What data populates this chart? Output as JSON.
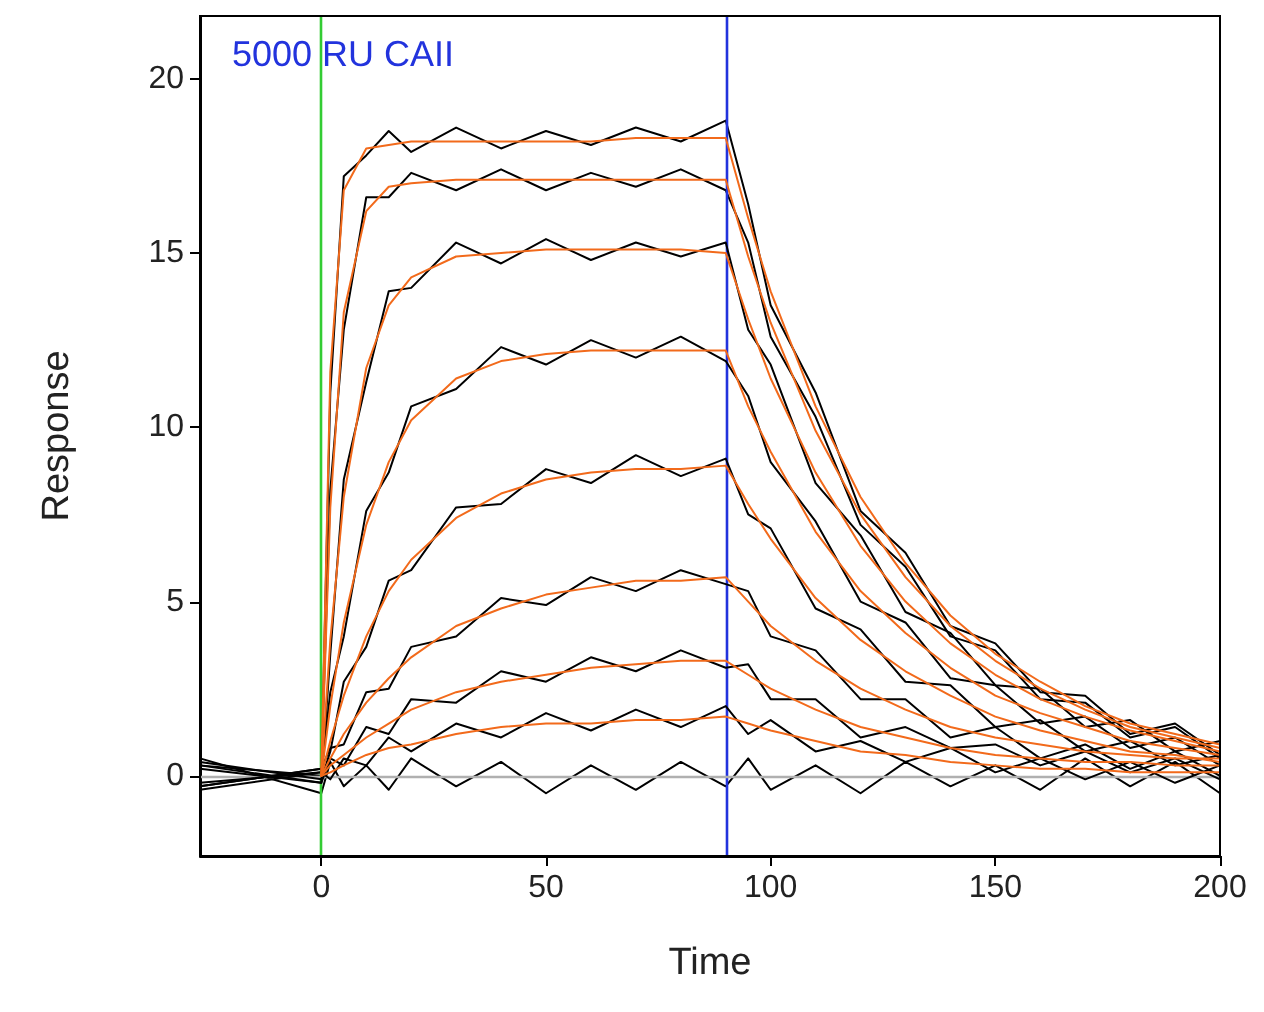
{
  "chart_data": {
    "type": "line",
    "xlabel": "Time",
    "ylabel": "Response",
    "annotations": [
      "5000 RU CAII"
    ],
    "xlim": [
      -27,
      200
    ],
    "xticks": [
      0,
      50,
      100,
      150,
      200
    ],
    "ylim": [
      -2.3,
      21.8
    ],
    "yticks": [
      0,
      5,
      10,
      15,
      20
    ],
    "grid": false,
    "marker": "none",
    "line_style": "solid",
    "ref_lines": [
      {
        "axis": "x",
        "value": 0,
        "color": "#33cc33"
      },
      {
        "axis": "x",
        "value": 90,
        "color": "#2233dd"
      },
      {
        "axis": "y",
        "value": 0,
        "color": "#b0b0b0"
      }
    ],
    "series": [
      {
        "color": "#000000",
        "x": [
          -27,
          0,
          2,
          5,
          10,
          15,
          20,
          30,
          40,
          50,
          60,
          70,
          80,
          90,
          95,
          100,
          110,
          120,
          130,
          140,
          150,
          160,
          170,
          180,
          190,
          200
        ],
        "values": [
          0.5,
          -0.5,
          0.4,
          -0.3,
          0.3,
          -0.4,
          0.5,
          -0.3,
          0.4,
          -0.5,
          0.3,
          -0.4,
          0.4,
          -0.3,
          0.5,
          -0.4,
          0.3,
          -0.5,
          0.4,
          -0.3,
          0.3,
          -0.4,
          0.5,
          -0.3,
          0.4,
          -0.5
        ]
      },
      {
        "color": "#000000",
        "x": [
          -27,
          0,
          2,
          5,
          10,
          15,
          20,
          30,
          40,
          50,
          60,
          70,
          80,
          90,
          95,
          100,
          110,
          120,
          130,
          140,
          150,
          160,
          170,
          180,
          190,
          200
        ],
        "values": [
          0.3,
          0,
          11.0,
          17.2,
          17.8,
          18.5,
          17.9,
          18.6,
          18.0,
          18.5,
          18.1,
          18.6,
          18.2,
          18.8,
          16.4,
          13.5,
          11.0,
          7.6,
          6.4,
          4.3,
          3.8,
          2.4,
          2.3,
          1.2,
          1.5,
          0.6
        ]
      },
      {
        "color": "#000000",
        "x": [
          -27,
          0,
          2,
          5,
          10,
          15,
          20,
          30,
          40,
          50,
          60,
          70,
          80,
          90,
          95,
          100,
          110,
          120,
          130,
          140,
          150,
          160,
          170,
          180,
          190,
          200
        ],
        "values": [
          -0.3,
          0.2,
          8.2,
          12.8,
          16.6,
          16.6,
          17.3,
          16.8,
          17.4,
          16.8,
          17.3,
          16.9,
          17.4,
          16.8,
          15.3,
          12.6,
          10.3,
          7.2,
          6.0,
          4.0,
          3.6,
          2.2,
          2.1,
          1.1,
          1.4,
          0.5
        ]
      },
      {
        "color": "#000000",
        "x": [
          -27,
          0,
          2,
          5,
          10,
          15,
          20,
          30,
          40,
          50,
          60,
          70,
          80,
          90,
          95,
          100,
          110,
          120,
          130,
          140,
          150,
          160,
          170,
          180,
          190,
          200
        ],
        "values": [
          0.2,
          -0.2,
          3.5,
          8.5,
          11.3,
          13.9,
          14.0,
          15.3,
          14.7,
          15.4,
          14.8,
          15.3,
          14.9,
          15.3,
          12.8,
          11.8,
          8.4,
          6.9,
          4.7,
          4.1,
          2.6,
          2.5,
          1.4,
          1.6,
          0.7,
          1.0
        ]
      },
      {
        "color": "#000000",
        "x": [
          -27,
          0,
          2,
          5,
          10,
          15,
          20,
          30,
          40,
          50,
          60,
          70,
          80,
          90,
          95,
          100,
          110,
          120,
          130,
          140,
          150,
          160,
          170,
          180,
          190,
          200
        ],
        "values": [
          -0.2,
          0.1,
          2.4,
          4.0,
          7.6,
          8.7,
          10.6,
          11.1,
          12.3,
          11.8,
          12.5,
          12.0,
          12.6,
          11.9,
          10.9,
          9.0,
          7.3,
          5.0,
          4.4,
          2.8,
          2.6,
          1.5,
          1.7,
          0.8,
          1.1,
          0.3
        ]
      },
      {
        "color": "#000000",
        "x": [
          -27,
          0,
          2,
          5,
          10,
          15,
          20,
          30,
          40,
          50,
          60,
          70,
          80,
          90,
          95,
          100,
          110,
          120,
          130,
          140,
          150,
          160,
          170,
          180,
          190,
          200
        ],
        "values": [
          0.4,
          -0.1,
          0.7,
          2.7,
          3.7,
          5.6,
          5.9,
          7.7,
          7.8,
          8.8,
          8.4,
          9.2,
          8.6,
          9.1,
          7.5,
          7.1,
          4.8,
          4.2,
          2.7,
          2.6,
          1.4,
          1.6,
          0.7,
          1.0,
          0.3,
          0.6
        ]
      },
      {
        "color": "#000000",
        "x": [
          -27,
          0,
          2,
          5,
          10,
          15,
          20,
          30,
          40,
          50,
          60,
          70,
          80,
          90,
          95,
          100,
          110,
          120,
          130,
          140,
          150,
          160,
          170,
          180,
          190,
          200
        ],
        "values": [
          -0.3,
          0.2,
          0.8,
          0.9,
          2.4,
          2.5,
          3.7,
          4.0,
          5.1,
          4.9,
          5.7,
          5.3,
          5.9,
          5.5,
          5.3,
          4.0,
          3.6,
          2.2,
          2.2,
          1.1,
          1.4,
          0.5,
          0.9,
          0.2,
          0.7,
          0.0
        ]
      },
      {
        "color": "#000000",
        "x": [
          -27,
          0,
          2,
          5,
          10,
          15,
          20,
          30,
          40,
          50,
          60,
          70,
          80,
          90,
          95,
          100,
          110,
          120,
          130,
          140,
          150,
          160,
          170,
          180,
          190,
          200
        ],
        "values": [
          0.3,
          -0.2,
          0.5,
          0.3,
          1.4,
          1.2,
          2.2,
          2.1,
          3.0,
          2.7,
          3.4,
          3.0,
          3.6,
          3.1,
          3.2,
          2.2,
          2.2,
          1.1,
          1.4,
          0.8,
          0.9,
          0.3,
          0.7,
          0.1,
          0.5,
          -0.1
        ]
      },
      {
        "color": "#000000",
        "x": [
          -27,
          0,
          2,
          5,
          10,
          15,
          20,
          30,
          40,
          50,
          60,
          70,
          80,
          90,
          95,
          100,
          110,
          120,
          130,
          140,
          150,
          160,
          170,
          180,
          190,
          200
        ],
        "values": [
          -0.4,
          0.1,
          -0.1,
          0.5,
          0.3,
          1.1,
          0.7,
          1.5,
          1.1,
          1.8,
          1.3,
          1.9,
          1.4,
          2.0,
          1.2,
          1.6,
          0.7,
          1.0,
          0.4,
          0.8,
          0.1,
          0.5,
          -0.1,
          0.4,
          -0.2,
          0.3
        ]
      },
      {
        "color": "#f26a1b",
        "x": [
          0,
          2,
          5,
          10,
          15,
          20,
          30,
          40,
          50,
          60,
          70,
          80,
          90,
          95,
          100,
          110,
          120,
          130,
          140,
          150,
          160,
          170,
          180,
          190,
          200
        ],
        "values": [
          0,
          11.6,
          16.8,
          18.0,
          18.1,
          18.2,
          18.2,
          18.2,
          18.2,
          18.2,
          18.3,
          18.3,
          18.3,
          16.0,
          13.9,
          10.6,
          8.0,
          6.1,
          4.6,
          3.5,
          2.7,
          2.0,
          1.5,
          1.2,
          0.9
        ]
      },
      {
        "color": "#f26a1b",
        "x": [
          0,
          2,
          5,
          10,
          15,
          20,
          30,
          40,
          50,
          60,
          70,
          80,
          90,
          95,
          100,
          110,
          120,
          130,
          140,
          150,
          160,
          170,
          180,
          190,
          200
        ],
        "values": [
          0,
          7.7,
          13.3,
          16.2,
          16.9,
          17.0,
          17.1,
          17.1,
          17.1,
          17.1,
          17.1,
          17.1,
          17.1,
          14.9,
          13.0,
          9.9,
          7.5,
          5.7,
          4.3,
          3.3,
          2.5,
          1.9,
          1.4,
          1.1,
          0.8
        ]
      },
      {
        "color": "#f26a1b",
        "x": [
          0,
          2,
          5,
          10,
          15,
          20,
          30,
          40,
          50,
          60,
          70,
          80,
          90,
          95,
          100,
          110,
          120,
          130,
          140,
          150,
          160,
          170,
          180,
          190,
          200
        ],
        "values": [
          0,
          3.9,
          8.0,
          11.7,
          13.5,
          14.3,
          14.9,
          15.0,
          15.1,
          15.1,
          15.1,
          15.1,
          15.0,
          13.1,
          11.4,
          8.7,
          6.6,
          5.0,
          3.8,
          2.9,
          2.2,
          1.7,
          1.3,
          1.0,
          0.7
        ]
      },
      {
        "color": "#f26a1b",
        "x": [
          0,
          2,
          5,
          10,
          15,
          20,
          30,
          40,
          50,
          60,
          70,
          80,
          90,
          95,
          100,
          110,
          120,
          130,
          140,
          150,
          160,
          170,
          180,
          190,
          200
        ],
        "values": [
          0,
          2.0,
          4.4,
          7.2,
          9.0,
          10.2,
          11.4,
          11.9,
          12.1,
          12.2,
          12.2,
          12.2,
          12.2,
          10.6,
          9.3,
          7.0,
          5.3,
          4.1,
          3.1,
          2.3,
          1.8,
          1.4,
          1.0,
          0.8,
          0.6
        ]
      },
      {
        "color": "#f26a1b",
        "x": [
          0,
          2,
          5,
          10,
          15,
          20,
          30,
          40,
          50,
          60,
          70,
          80,
          90,
          95,
          100,
          110,
          120,
          130,
          140,
          150,
          160,
          170,
          180,
          190,
          200
        ],
        "values": [
          0,
          1.0,
          2.3,
          4.0,
          5.3,
          6.2,
          7.4,
          8.1,
          8.5,
          8.7,
          8.8,
          8.8,
          8.9,
          7.8,
          6.8,
          5.1,
          3.9,
          3.0,
          2.3,
          1.7,
          1.3,
          1.0,
          0.7,
          0.6,
          0.4
        ]
      },
      {
        "color": "#f26a1b",
        "x": [
          0,
          2,
          5,
          10,
          15,
          20,
          30,
          40,
          50,
          60,
          70,
          80,
          90,
          95,
          100,
          110,
          120,
          130,
          140,
          150,
          160,
          170,
          180,
          190,
          200
        ],
        "values": [
          0,
          0.5,
          1.2,
          2.1,
          2.8,
          3.4,
          4.3,
          4.8,
          5.2,
          5.4,
          5.6,
          5.6,
          5.7,
          5.0,
          4.3,
          3.3,
          2.5,
          1.9,
          1.4,
          1.1,
          0.9,
          0.7,
          0.6,
          0.5,
          0.5
        ]
      },
      {
        "color": "#f26a1b",
        "x": [
          0,
          2,
          5,
          10,
          15,
          20,
          30,
          40,
          50,
          60,
          70,
          80,
          90,
          95,
          100,
          110,
          120,
          130,
          140,
          150,
          160,
          170,
          180,
          190,
          200
        ],
        "values": [
          0,
          0.3,
          0.6,
          1.1,
          1.5,
          1.9,
          2.4,
          2.7,
          2.9,
          3.1,
          3.2,
          3.3,
          3.3,
          2.9,
          2.5,
          1.9,
          1.4,
          1.1,
          0.8,
          0.6,
          0.5,
          0.4,
          0.4,
          0.3,
          0.3
        ]
      },
      {
        "color": "#f26a1b",
        "x": [
          0,
          2,
          5,
          10,
          15,
          20,
          30,
          40,
          50,
          60,
          70,
          80,
          90,
          95,
          100,
          110,
          120,
          130,
          140,
          150,
          160,
          170,
          180,
          190,
          200
        ],
        "values": [
          0,
          0.1,
          0.3,
          0.6,
          0.8,
          0.9,
          1.2,
          1.4,
          1.5,
          1.5,
          1.6,
          1.6,
          1.7,
          1.5,
          1.3,
          1.0,
          0.7,
          0.6,
          0.4,
          0.3,
          0.2,
          0.2,
          0.1,
          0.1,
          0.1
        ]
      }
    ]
  }
}
